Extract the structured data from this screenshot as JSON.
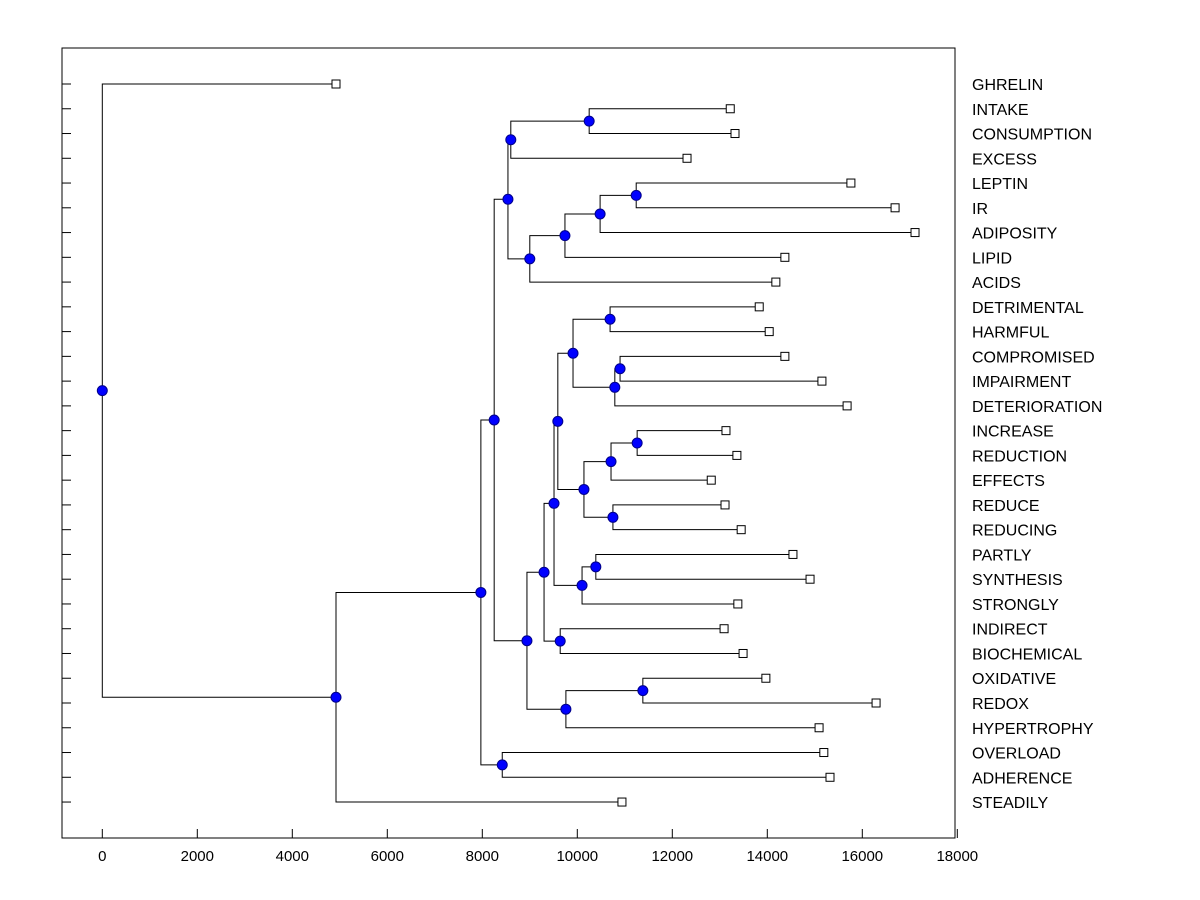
{
  "chart_data": {
    "type": "dendrogram",
    "title": "",
    "xlabel": "",
    "ylabel": "",
    "xlim": [
      -850,
      17950
    ],
    "x_ticks": [
      0,
      2000,
      4000,
      6000,
      8000,
      10000,
      12000,
      14000,
      16000,
      18000
    ],
    "grid": false,
    "colors": {
      "node": "#0000ff",
      "line": "#000000",
      "leaf_fill": "#ffffff"
    },
    "tree": {
      "h": 0,
      "children": [
        {
          "label": "GHRELIN",
          "value": 4920
        },
        {
          "h": 4920,
          "children": [
            {
              "h": 7970,
              "children": [
                {
                  "h": 8250,
                  "children": [
                    {
                      "h": 8540,
                      "children": [
                        {
                          "h": 8600,
                          "children": [
                            {
                              "h": 10250,
                              "children": [
                                {
                                  "label": "INTAKE",
                                  "value": 13220
                                },
                                {
                                  "label": "CONSUMPTION",
                                  "value": 13320
                                }
                              ]
                            },
                            {
                              "label": "EXCESS",
                              "value": 12310
                            }
                          ]
                        },
                        {
                          "h": 9000,
                          "children": [
                            {
                              "h": 9740,
                              "children": [
                                {
                                  "h": 10480,
                                  "children": [
                                    {
                                      "h": 11240,
                                      "children": [
                                        {
                                          "label": "LEPTIN",
                                          "value": 15760
                                        },
                                        {
                                          "label": "IR",
                                          "value": 16690
                                        }
                                      ]
                                    },
                                    {
                                      "label": "ADIPOSITY",
                                      "value": 17110
                                    }
                                  ]
                                },
                                {
                                  "label": "LIPID",
                                  "value": 14370
                                }
                              ]
                            },
                            {
                              "label": "ACIDS",
                              "value": 14180
                            }
                          ]
                        }
                      ]
                    },
                    {
                      "h": 8940,
                      "children": [
                        {
                          "h": 9300,
                          "children": [
                            {
                              "h": 9510,
                              "children": [
                                {
                                  "h": 9590,
                                  "children": [
                                    {
                                      "h": 9910,
                                      "children": [
                                        {
                                          "h": 10690,
                                          "children": [
                                            {
                                              "label": "DETRIMENTAL",
                                              "value": 13830
                                            },
                                            {
                                              "label": "HARMFUL",
                                              "value": 14040
                                            }
                                          ]
                                        },
                                        {
                                          "h": 10790,
                                          "children": [
                                            {
                                              "h": 10900,
                                              "children": [
                                                {
                                                  "label": "COMPROMISED",
                                                  "value": 14370
                                                },
                                                {
                                                  "label": "IMPAIRMENT",
                                                  "value": 15150
                                                }
                                              ]
                                            },
                                            {
                                              "label": "DETERIORATION",
                                              "value": 15680
                                            }
                                          ]
                                        }
                                      ]
                                    },
                                    {
                                      "h": 10140,
                                      "children": [
                                        {
                                          "h": 10710,
                                          "children": [
                                            {
                                              "h": 11260,
                                              "children": [
                                                {
                                                  "label": "INCREASE",
                                                  "value": 13130
                                                },
                                                {
                                                  "label": "REDUCTION",
                                                  "value": 13360
                                                }
                                              ]
                                            },
                                            {
                                              "label": "EFFECTS",
                                              "value": 12820
                                            }
                                          ]
                                        },
                                        {
                                          "h": 10750,
                                          "children": [
                                            {
                                              "label": "REDUCE",
                                              "value": 13110
                                            },
                                            {
                                              "label": "REDUCING",
                                              "value": 13450
                                            }
                                          ]
                                        }
                                      ]
                                    }
                                  ]
                                },
                                {
                                  "h": 10100,
                                  "children": [
                                    {
                                      "h": 10390,
                                      "children": [
                                        {
                                          "label": "PARTLY",
                                          "value": 14540
                                        },
                                        {
                                          "label": "SYNTHESIS",
                                          "value": 14900
                                        }
                                      ]
                                    },
                                    {
                                      "label": "STRONGLY",
                                      "value": 13380
                                    }
                                  ]
                                }
                              ]
                            },
                            {
                              "h": 9640,
                              "children": [
                                {
                                  "label": "INDIRECT",
                                  "value": 13090
                                },
                                {
                                  "label": "BIOCHEMICAL",
                                  "value": 13490
                                }
                              ]
                            }
                          ]
                        },
                        {
                          "h": 9760,
                          "children": [
                            {
                              "h": 11380,
                              "children": [
                                {
                                  "label": "OXIDATIVE",
                                  "value": 13970
                                },
                                {
                                  "label": "REDOX",
                                  "value": 16290
                                }
                              ]
                            },
                            {
                              "label": "HYPERTROPHY",
                              "value": 15090
                            }
                          ]
                        }
                      ]
                    }
                  ]
                },
                {
                  "h": 8420,
                  "children": [
                    {
                      "label": "OVERLOAD",
                      "value": 15190
                    },
                    {
                      "label": "ADHERENCE",
                      "value": 15320
                    }
                  ]
                }
              ]
            },
            {
              "label": "STEADILY",
              "value": 10940
            }
          ]
        }
      ]
    }
  }
}
